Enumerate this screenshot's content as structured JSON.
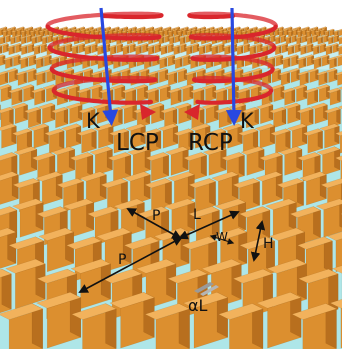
{
  "labels": {
    "k_left": "K",
    "lcp": "LCP",
    "rcp": "RCP",
    "k_right": "K",
    "p_short": "P",
    "l": "L",
    "w": "W",
    "h": "H",
    "p_long": "P",
    "alpha_l": "αL"
  },
  "colors": {
    "substrate": "#aee6e8",
    "pillar_top": "#f2b25c",
    "pillar_front": "#dc8f2f",
    "pillar_side": "#b86f1e",
    "helix": "#d9262c",
    "wave_vector": "#2848e0",
    "dimension_arrow": "#111111",
    "gap_marker": "#9a9a9a"
  },
  "icons": {
    "helix_left": "red-helix-arrow-icon",
    "helix_right": "red-helix-arrow-icon",
    "wave_vector": "blue-arrow-icon"
  }
}
